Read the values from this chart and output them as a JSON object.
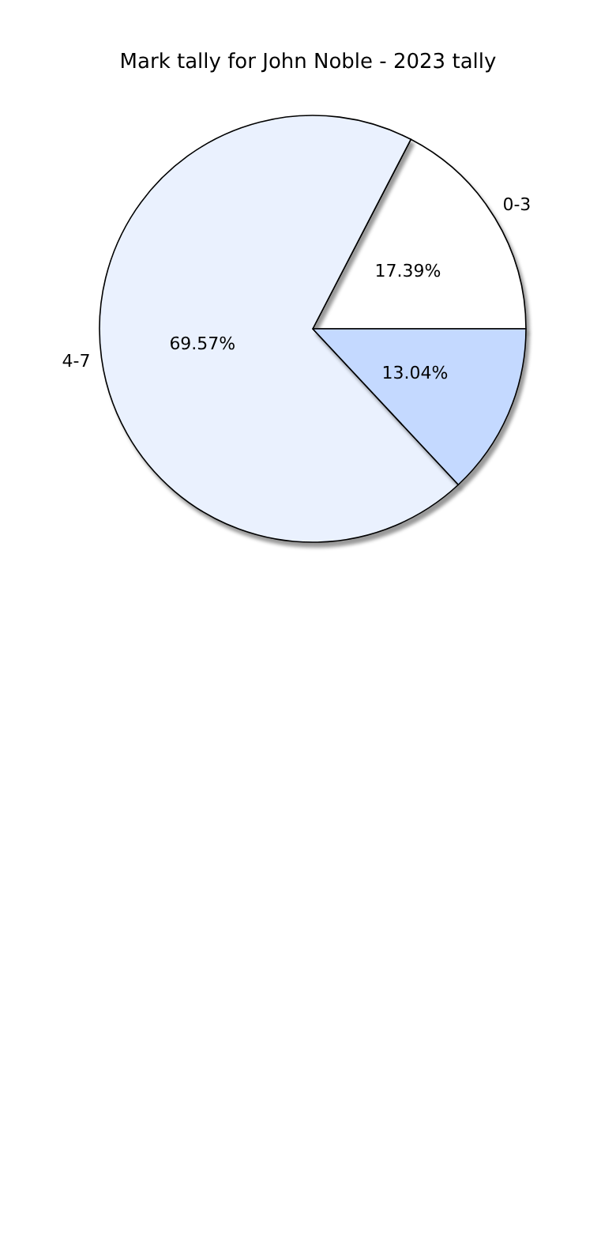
{
  "chart_data": {
    "type": "pie",
    "title": "Mark tally for John Noble - 2023 tally",
    "categories": [
      "0-3",
      "4-7",
      null
    ],
    "values": [
      17.39,
      69.57,
      13.04
    ],
    "colors": [
      "#ffffff",
      "#eaf1fe",
      "#c4d9ff"
    ],
    "value_labels": [
      "17.39%",
      "69.57%",
      "13.04%"
    ],
    "legend": false
  }
}
